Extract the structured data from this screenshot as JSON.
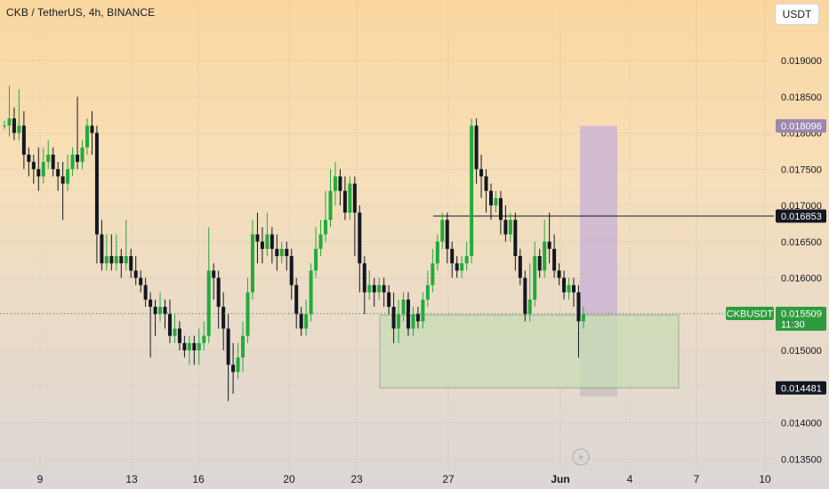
{
  "header": {
    "title": "CKB / TetherUS, 4h, BINANCE"
  },
  "currency_button": "USDT",
  "last_price_tag": {
    "symbol": "CKBUSDT",
    "price": "0.015509",
    "countdown": "11:30"
  },
  "colors": {
    "up": "#22ab3b",
    "down": "#131722",
    "last_price": "#2e9c3e",
    "target_zone": "#c8afd8",
    "stop_zone": "#c9c1c2",
    "demand_zone": "#c8dcb6"
  },
  "chart_data": {
    "type": "candlestick",
    "x": [
      "9",
      "13",
      "16",
      "20",
      "23",
      "27",
      "Jun",
      "4",
      "7",
      "10"
    ],
    "ylim": [
      0.0135,
      0.0195
    ],
    "y_ticks": [
      "0.019000",
      "0.018500",
      "0.018000",
      "0.017500",
      "0.017000",
      "0.016500",
      "0.016000",
      "0.015500",
      "0.015000",
      "0.014500",
      "0.014000",
      "0.013500"
    ],
    "price_labels": [
      {
        "value": "0.018096",
        "style": "target"
      },
      {
        "value": "0.016853",
        "style": "line"
      },
      {
        "value": "0.015487",
        "style": "zone"
      },
      {
        "value": "0.014481",
        "style": "zone"
      }
    ],
    "candles": [
      [
        0.0181,
        0.0181,
        0.01817,
        0.01805
      ],
      [
        0.0181,
        0.0182,
        0.01865,
        0.01795
      ],
      [
        0.0182,
        0.018,
        0.01835,
        0.0179
      ],
      [
        0.018,
        0.0181,
        0.0186,
        0.0179
      ],
      [
        0.0181,
        0.0177,
        0.0183,
        0.0175
      ],
      [
        0.0177,
        0.0176,
        0.0178,
        0.0174
      ],
      [
        0.0176,
        0.0175,
        0.0177,
        0.0173
      ],
      [
        0.0175,
        0.0174,
        0.0178,
        0.0172
      ],
      [
        0.0174,
        0.0176,
        0.0178,
        0.0173
      ],
      [
        0.0176,
        0.0177,
        0.0179,
        0.0175
      ],
      [
        0.0177,
        0.0175,
        0.0178,
        0.0174
      ],
      [
        0.0175,
        0.0174,
        0.0176,
        0.0172
      ],
      [
        0.0174,
        0.0173,
        0.0176,
        0.0168
      ],
      [
        0.0173,
        0.0175,
        0.0177,
        0.0172
      ],
      [
        0.0175,
        0.0177,
        0.0178,
        0.0174
      ],
      [
        0.0177,
        0.0176,
        0.0185,
        0.0175
      ],
      [
        0.0176,
        0.0178,
        0.0179,
        0.0175
      ],
      [
        0.0178,
        0.0181,
        0.0182,
        0.0177
      ],
      [
        0.0181,
        0.018,
        0.0183,
        0.0177
      ],
      [
        0.018,
        0.0166,
        0.0181,
        0.0162
      ],
      [
        0.0166,
        0.0162,
        0.0168,
        0.0161
      ],
      [
        0.0162,
        0.0163,
        0.0166,
        0.0161
      ],
      [
        0.0163,
        0.0162,
        0.0166,
        0.0161
      ],
      [
        0.0162,
        0.0163,
        0.0166,
        0.0161
      ],
      [
        0.0163,
        0.0162,
        0.0164,
        0.016
      ],
      [
        0.0162,
        0.0163,
        0.0168,
        0.0161
      ],
      [
        0.0163,
        0.0161,
        0.0164,
        0.016
      ],
      [
        0.0161,
        0.016,
        0.0163,
        0.0159
      ],
      [
        0.016,
        0.0159,
        0.0161,
        0.0158
      ],
      [
        0.0159,
        0.0157,
        0.016,
        0.0156
      ],
      [
        0.0157,
        0.0156,
        0.0158,
        0.0149
      ],
      [
        0.0156,
        0.0155,
        0.0157,
        0.0152
      ],
      [
        0.0155,
        0.0156,
        0.0158,
        0.0154
      ],
      [
        0.0156,
        0.0155,
        0.0157,
        0.0153
      ],
      [
        0.0155,
        0.0152,
        0.0157,
        0.0151
      ],
      [
        0.0152,
        0.0153,
        0.0155,
        0.0151
      ],
      [
        0.0153,
        0.0151,
        0.0154,
        0.015
      ],
      [
        0.0151,
        0.015,
        0.0152,
        0.0149
      ],
      [
        0.015,
        0.0151,
        0.0152,
        0.0148
      ],
      [
        0.0151,
        0.015,
        0.0152,
        0.0148
      ],
      [
        0.015,
        0.0151,
        0.0153,
        0.0148
      ],
      [
        0.0151,
        0.0152,
        0.0154,
        0.015
      ],
      [
        0.0152,
        0.0161,
        0.0167,
        0.0151
      ],
      [
        0.0161,
        0.016,
        0.0162,
        0.0157
      ],
      [
        0.016,
        0.0156,
        0.0161,
        0.0153
      ],
      [
        0.0156,
        0.0153,
        0.0158,
        0.015
      ],
      [
        0.0153,
        0.0148,
        0.0155,
        0.0143
      ],
      [
        0.0148,
        0.0147,
        0.0151,
        0.0144
      ],
      [
        0.0147,
        0.0149,
        0.0151,
        0.0146
      ],
      [
        0.0149,
        0.0152,
        0.0154,
        0.0147
      ],
      [
        0.0152,
        0.0158,
        0.016,
        0.0151
      ],
      [
        0.0158,
        0.0166,
        0.0168,
        0.0157
      ],
      [
        0.0166,
        0.0165,
        0.0169,
        0.0162
      ],
      [
        0.0165,
        0.0164,
        0.0167,
        0.0162
      ],
      [
        0.0164,
        0.0166,
        0.0169,
        0.0163
      ],
      [
        0.0166,
        0.0164,
        0.0167,
        0.0162
      ],
      [
        0.0164,
        0.0163,
        0.0166,
        0.0161
      ],
      [
        0.0163,
        0.0164,
        0.0165,
        0.0162
      ],
      [
        0.0164,
        0.0163,
        0.0165,
        0.0161
      ],
      [
        0.0163,
        0.0159,
        0.0164,
        0.0157
      ],
      [
        0.0159,
        0.0155,
        0.016,
        0.0153
      ],
      [
        0.0155,
        0.0153,
        0.0156,
        0.0152
      ],
      [
        0.0153,
        0.0155,
        0.0157,
        0.0152
      ],
      [
        0.0155,
        0.0161,
        0.0162,
        0.0154
      ],
      [
        0.0161,
        0.0164,
        0.0167,
        0.016
      ],
      [
        0.0164,
        0.0166,
        0.0168,
        0.0163
      ],
      [
        0.0166,
        0.0168,
        0.0172,
        0.0165
      ],
      [
        0.0168,
        0.0172,
        0.0175,
        0.0167
      ],
      [
        0.0172,
        0.0174,
        0.0176,
        0.017
      ],
      [
        0.0174,
        0.0172,
        0.0175,
        0.017
      ],
      [
        0.0172,
        0.0169,
        0.0174,
        0.0168
      ],
      [
        0.0169,
        0.0173,
        0.0174,
        0.0168
      ],
      [
        0.0173,
        0.0169,
        0.0174,
        0.0163
      ],
      [
        0.0169,
        0.0162,
        0.017,
        0.0158
      ],
      [
        0.0162,
        0.0158,
        0.0163,
        0.0155
      ],
      [
        0.0158,
        0.0159,
        0.0161,
        0.0157
      ],
      [
        0.0159,
        0.0158,
        0.016,
        0.0156
      ],
      [
        0.0158,
        0.0159,
        0.016,
        0.0157
      ],
      [
        0.0159,
        0.0158,
        0.016,
        0.0156
      ],
      [
        0.0158,
        0.0156,
        0.0159,
        0.0155
      ],
      [
        0.0156,
        0.0153,
        0.0158,
        0.0151
      ],
      [
        0.0153,
        0.0155,
        0.0157,
        0.0151
      ],
      [
        0.0155,
        0.0157,
        0.0158,
        0.0154
      ],
      [
        0.0157,
        0.0153,
        0.0158,
        0.0152
      ],
      [
        0.0153,
        0.0155,
        0.0156,
        0.0152
      ],
      [
        0.0155,
        0.0154,
        0.0156,
        0.0153
      ],
      [
        0.0154,
        0.0157,
        0.0158,
        0.0153
      ],
      [
        0.0157,
        0.0159,
        0.0161,
        0.0156
      ],
      [
        0.0159,
        0.0162,
        0.0164,
        0.0158
      ],
      [
        0.0162,
        0.0165,
        0.0166,
        0.0161
      ],
      [
        0.0165,
        0.0168,
        0.0169,
        0.0164
      ],
      [
        0.0168,
        0.0164,
        0.0169,
        0.0162
      ],
      [
        0.0164,
        0.0162,
        0.0165,
        0.016
      ],
      [
        0.0162,
        0.0161,
        0.0163,
        0.016
      ],
      [
        0.0161,
        0.0162,
        0.0163,
        0.016
      ],
      [
        0.0162,
        0.0163,
        0.0165,
        0.0161
      ],
      [
        0.0163,
        0.0181,
        0.0182,
        0.0162
      ],
      [
        0.0181,
        0.0175,
        0.0182,
        0.0173
      ],
      [
        0.0175,
        0.0174,
        0.0177,
        0.0171
      ],
      [
        0.0174,
        0.0172,
        0.0175,
        0.0169
      ],
      [
        0.0172,
        0.017,
        0.0173,
        0.0168
      ],
      [
        0.017,
        0.0171,
        0.0172,
        0.0169
      ],
      [
        0.0171,
        0.0168,
        0.0172,
        0.0166
      ],
      [
        0.0168,
        0.0166,
        0.017,
        0.0165
      ],
      [
        0.0166,
        0.0168,
        0.0169,
        0.0165
      ],
      [
        0.0168,
        0.0163,
        0.0169,
        0.0161
      ],
      [
        0.0163,
        0.016,
        0.0164,
        0.0159
      ],
      [
        0.016,
        0.0155,
        0.0161,
        0.0154
      ],
      [
        0.0155,
        0.0157,
        0.0162,
        0.0154
      ],
      [
        0.0157,
        0.0163,
        0.0165,
        0.0156
      ],
      [
        0.0163,
        0.0161,
        0.0164,
        0.016
      ],
      [
        0.0161,
        0.0165,
        0.0168,
        0.016
      ],
      [
        0.0165,
        0.0164,
        0.0169,
        0.0162
      ],
      [
        0.0164,
        0.0161,
        0.0166,
        0.016
      ],
      [
        0.0161,
        0.016,
        0.0162,
        0.0159
      ],
      [
        0.016,
        0.0158,
        0.0161,
        0.0157
      ],
      [
        0.0158,
        0.0159,
        0.016,
        0.0157
      ],
      [
        0.0159,
        0.0158,
        0.016,
        0.0156
      ],
      [
        0.0158,
        0.0154,
        0.0159,
        0.0149
      ],
      [
        0.0154,
        0.0155,
        0.0156,
        0.0153
      ]
    ]
  }
}
